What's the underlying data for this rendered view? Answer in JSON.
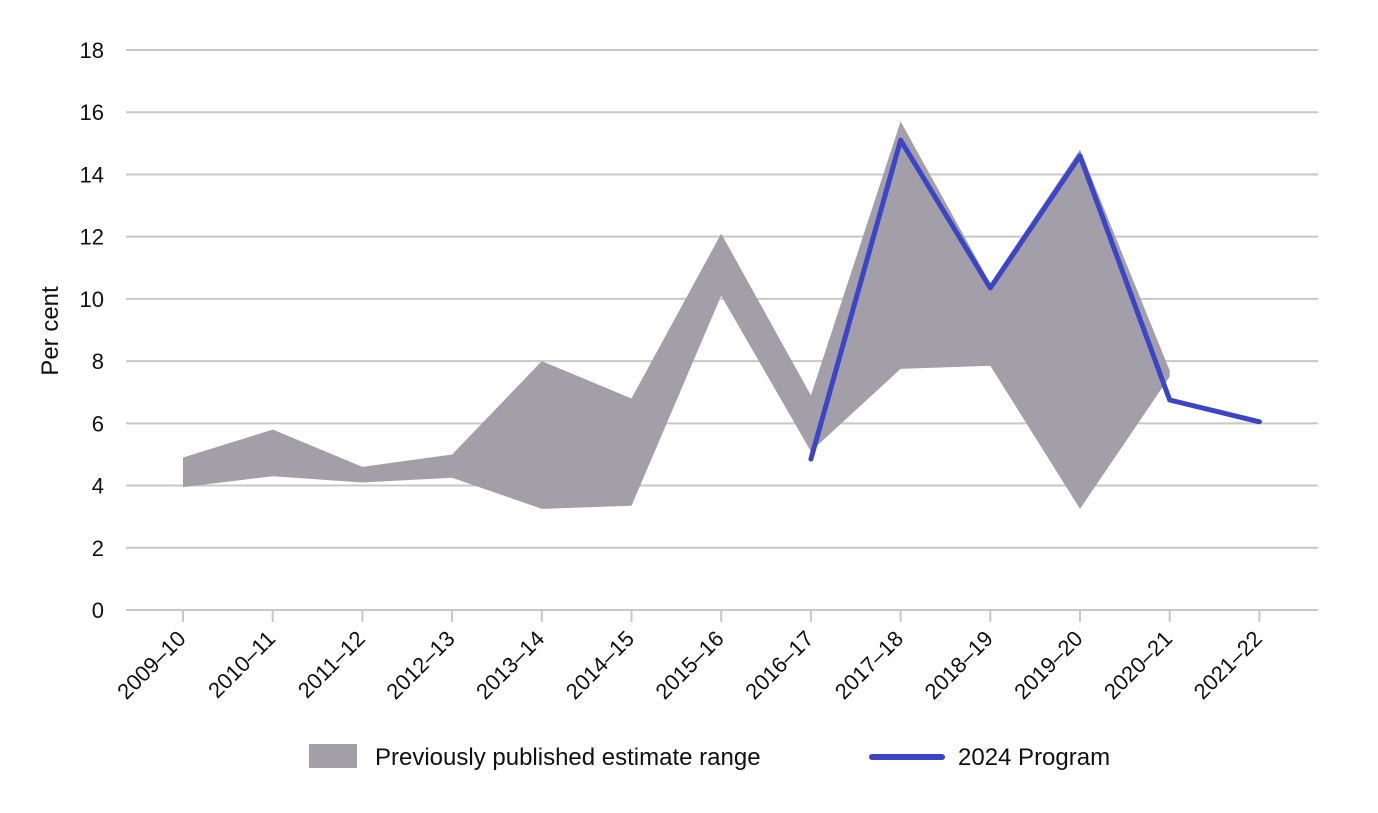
{
  "chart_data": {
    "type": "area",
    "title": "",
    "xlabel": "",
    "ylabel": "Per cent",
    "ylim": [
      0,
      18
    ],
    "yticks": [
      0,
      2,
      4,
      6,
      8,
      10,
      12,
      14,
      16,
      18
    ],
    "grid": true,
    "legend_position": "bottom",
    "categories": [
      "2009–10",
      "2010–11",
      "2011–12",
      "2012–13",
      "2013–14",
      "2014–15",
      "2015–16",
      "2016–17",
      "2017–18",
      "2018–19",
      "2019–20",
      "2020–21",
      "2021–22"
    ],
    "series": [
      {
        "name": "Previously published estimate range",
        "kind": "range",
        "color": "#a29fa8",
        "upper": [
          4.9,
          5.8,
          4.6,
          5.0,
          8.0,
          6.8,
          12.1,
          6.9,
          15.7,
          10.5,
          14.8,
          7.7,
          null
        ],
        "lower": [
          3.95,
          4.3,
          4.1,
          4.25,
          3.25,
          3.35,
          10.1,
          5.1,
          7.75,
          7.85,
          3.25,
          7.5,
          null
        ]
      },
      {
        "name": "2024 Program",
        "kind": "line",
        "color": "#3b45c6",
        "values": [
          null,
          null,
          null,
          null,
          null,
          null,
          null,
          4.85,
          15.1,
          10.35,
          14.6,
          6.75,
          6.05
        ]
      }
    ]
  }
}
